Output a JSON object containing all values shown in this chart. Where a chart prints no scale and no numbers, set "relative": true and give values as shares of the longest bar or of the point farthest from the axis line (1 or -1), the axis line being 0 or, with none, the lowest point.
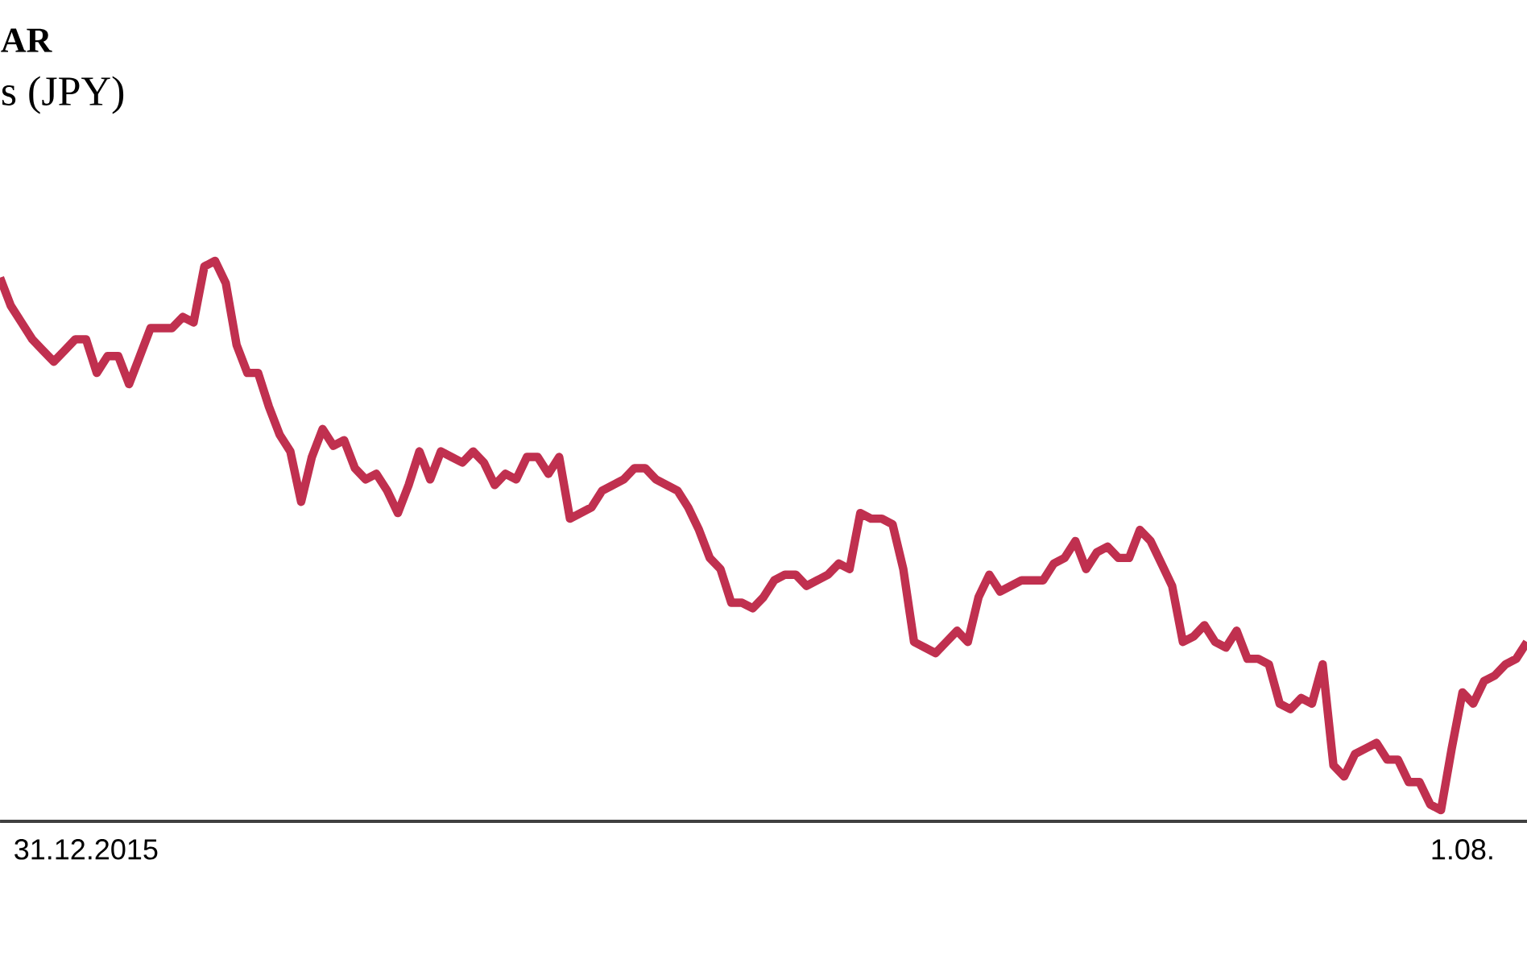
{
  "chart_data": {
    "type": "line",
    "title": "AR",
    "subtitle": "s (JPY)",
    "relative": true,
    "categories": [
      null,
      null,
      null,
      null,
      null,
      null,
      null,
      null,
      "31.12.2015",
      null,
      null,
      null,
      null,
      null,
      null,
      null,
      null,
      null,
      null,
      null,
      null,
      null,
      null,
      null,
      null,
      null,
      null,
      null,
      null,
      null,
      null,
      null,
      null,
      null,
      null,
      null,
      null,
      null,
      null,
      null,
      null,
      null,
      null,
      null,
      null,
      null,
      null,
      null,
      null,
      null,
      null,
      null,
      null,
      null,
      null,
      null,
      null,
      null,
      null,
      null,
      null,
      null,
      null,
      null,
      null,
      null,
      null,
      null,
      null,
      null,
      null,
      null,
      null,
      null,
      null,
      null,
      null,
      null,
      null,
      null,
      null,
      null,
      null,
      null,
      null,
      null,
      null,
      null,
      null,
      null,
      null,
      null,
      null,
      null,
      null,
      null,
      null,
      null,
      null,
      null,
      null,
      null,
      null,
      null,
      null,
      null,
      null,
      null,
      null,
      null,
      null,
      null,
      null,
      null,
      null,
      null,
      null,
      null,
      null,
      null,
      null,
      null,
      null,
      null,
      null,
      null,
      null,
      null,
      null,
      null,
      null,
      null,
      null,
      null,
      null,
      null,
      "1.08.",
      null,
      null,
      null,
      null,
      null,
      null
    ],
    "series": [
      {
        "color": "#c0304f",
        "values": [
          0.97,
          0.92,
          0.89,
          0.86,
          0.84,
          0.82,
          0.84,
          0.86,
          0.86,
          0.8,
          0.83,
          0.83,
          0.78,
          0.83,
          0.88,
          0.88,
          0.88,
          0.9,
          0.89,
          0.99,
          1,
          0.96,
          0.85,
          0.8,
          0.8,
          0.74,
          0.69,
          0.66,
          0.57,
          0.65,
          0.7,
          0.67,
          0.68,
          0.63,
          0.61,
          0.62,
          0.59,
          0.55,
          0.6,
          0.66,
          0.61,
          0.66,
          0.65,
          0.64,
          0.66,
          0.64,
          0.6,
          0.62,
          0.61,
          0.65,
          0.65,
          0.62,
          0.65,
          0.54,
          0.55,
          0.56,
          0.59,
          0.6,
          0.61,
          0.63,
          0.63,
          0.61,
          0.6,
          0.59,
          0.56,
          0.52,
          0.47,
          0.45,
          0.39,
          0.39,
          0.38,
          0.4,
          0.43,
          0.44,
          0.44,
          0.42,
          0.43,
          0.44,
          0.46,
          0.45,
          0.55,
          0.54,
          0.54,
          0.53,
          0.45,
          0.32,
          0.31,
          0.3,
          0.32,
          0.34,
          0.32,
          0.4,
          0.44,
          0.41,
          0.42,
          0.43,
          0.43,
          0.43,
          0.46,
          0.47,
          0.5,
          0.45,
          0.48,
          0.49,
          0.47,
          0.47,
          0.52,
          0.5,
          0.46,
          0.42,
          0.32,
          0.33,
          0.35,
          0.32,
          0.31,
          0.34,
          0.29,
          0.29,
          0.28,
          0.21,
          0.2,
          0.22,
          0.21,
          0.28,
          0.1,
          0.08,
          0.12,
          0.13,
          0.14,
          0.11,
          0.11,
          0.07,
          0.07,
          0.03,
          0.02,
          0.13,
          0.23,
          0.21,
          0.25,
          0.26,
          0.28,
          0.29,
          0.32
        ]
      }
    ],
    "marker": "none",
    "line_style": "solid"
  }
}
